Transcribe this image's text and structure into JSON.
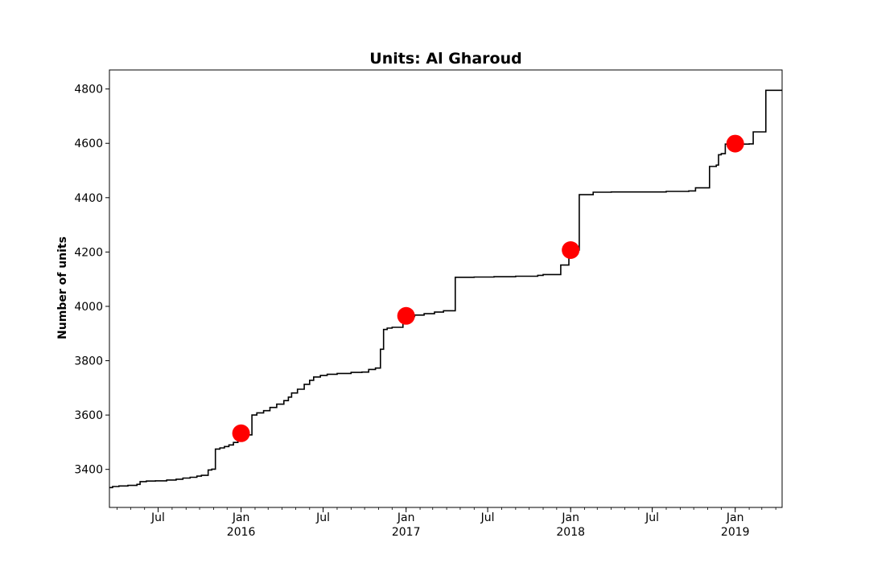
{
  "chart_data": {
    "type": "line",
    "title": "Units: Al Gharoud",
    "xlabel": "",
    "ylabel": "Number of units",
    "ylim": [
      3260,
      4870
    ],
    "y_ticks": [
      3400,
      3600,
      3800,
      4000,
      4200,
      4400,
      4600,
      4800
    ],
    "x_range": [
      "2015-03-15",
      "2019-04-15"
    ],
    "x_ticks": [
      {
        "date": "2015-07-01",
        "label": "Jul",
        "sublabel": ""
      },
      {
        "date": "2016-01-01",
        "label": "Jan",
        "sublabel": "2016"
      },
      {
        "date": "2016-07-01",
        "label": "Jul",
        "sublabel": ""
      },
      {
        "date": "2017-01-01",
        "label": "Jan",
        "sublabel": "2017"
      },
      {
        "date": "2017-07-01",
        "label": "Jul",
        "sublabel": ""
      },
      {
        "date": "2018-01-01",
        "label": "Jan",
        "sublabel": "2018"
      },
      {
        "date": "2018-07-01",
        "label": "Jul",
        "sublabel": ""
      },
      {
        "date": "2019-01-01",
        "label": "Jan",
        "sublabel": "2019"
      }
    ],
    "grid": false,
    "series": [
      {
        "line_color": "#000000",
        "step": true,
        "points": [
          [
            "2015-03-15",
            3333
          ],
          [
            "2015-03-22",
            3337
          ],
          [
            "2015-04-05",
            3339
          ],
          [
            "2015-04-25",
            3341
          ],
          [
            "2015-05-15",
            3345
          ],
          [
            "2015-05-22",
            3355
          ],
          [
            "2015-06-05",
            3357
          ],
          [
            "2015-06-25",
            3358
          ],
          [
            "2015-07-20",
            3361
          ],
          [
            "2015-08-10",
            3364
          ],
          [
            "2015-08-25",
            3368
          ],
          [
            "2015-09-10",
            3371
          ],
          [
            "2015-09-25",
            3375
          ],
          [
            "2015-10-05",
            3378
          ],
          [
            "2015-10-20",
            3398
          ],
          [
            "2015-10-28",
            3401
          ],
          [
            "2015-11-05",
            3475
          ],
          [
            "2015-11-15",
            3479
          ],
          [
            "2015-11-25",
            3484
          ],
          [
            "2015-12-05",
            3490
          ],
          [
            "2015-12-15",
            3499
          ],
          [
            "2015-12-25",
            3506
          ],
          [
            "2016-01-05",
            3517
          ],
          [
            "2016-01-15",
            3527
          ],
          [
            "2016-01-25",
            3600
          ],
          [
            "2016-02-05",
            3608
          ],
          [
            "2016-02-20",
            3616
          ],
          [
            "2016-03-05",
            3628
          ],
          [
            "2016-03-20",
            3640
          ],
          [
            "2016-04-05",
            3653
          ],
          [
            "2016-04-15",
            3666
          ],
          [
            "2016-04-22",
            3681
          ],
          [
            "2016-05-05",
            3695
          ],
          [
            "2016-05-20",
            3713
          ],
          [
            "2016-06-01",
            3728
          ],
          [
            "2016-06-10",
            3740
          ],
          [
            "2016-06-25",
            3746
          ],
          [
            "2016-07-10",
            3750
          ],
          [
            "2016-08-01",
            3753
          ],
          [
            "2016-09-01",
            3757
          ],
          [
            "2016-09-25",
            3758
          ],
          [
            "2016-10-10",
            3768
          ],
          [
            "2016-10-25",
            3773
          ],
          [
            "2016-11-05",
            3842
          ],
          [
            "2016-11-12",
            3915
          ],
          [
            "2016-11-20",
            3920
          ],
          [
            "2016-12-01",
            3923
          ],
          [
            "2016-12-25",
            3963
          ],
          [
            "2017-01-20",
            3968
          ],
          [
            "2017-02-10",
            3973
          ],
          [
            "2017-03-05",
            3979
          ],
          [
            "2017-03-25",
            3984
          ],
          [
            "2017-04-20",
            4107
          ],
          [
            "2017-06-01",
            4108
          ],
          [
            "2017-07-15",
            4109
          ],
          [
            "2017-09-01",
            4111
          ],
          [
            "2017-10-20",
            4114
          ],
          [
            "2017-11-01",
            4117
          ],
          [
            "2017-12-10",
            4152
          ],
          [
            "2017-12-28",
            4207
          ],
          [
            "2018-01-20",
            4411
          ],
          [
            "2018-02-20",
            4420
          ],
          [
            "2018-04-01",
            4421
          ],
          [
            "2018-06-01",
            4421
          ],
          [
            "2018-08-01",
            4423
          ],
          [
            "2018-09-20",
            4425
          ],
          [
            "2018-10-05",
            4436
          ],
          [
            "2018-11-05",
            4515
          ],
          [
            "2018-11-20",
            4520
          ],
          [
            "2018-11-25",
            4558
          ],
          [
            "2018-12-01",
            4562
          ],
          [
            "2018-12-10",
            4597
          ],
          [
            "2019-02-01",
            4598
          ],
          [
            "2019-02-10",
            4642
          ],
          [
            "2019-03-10",
            4795
          ],
          [
            "2019-04-15",
            4795
          ]
        ]
      }
    ],
    "markers": [
      {
        "date": "2016-01-01",
        "value": 3533
      },
      {
        "date": "2017-01-01",
        "value": 3965
      },
      {
        "date": "2018-01-01",
        "value": 4207
      },
      {
        "date": "2019-01-01",
        "value": 4599
      }
    ],
    "marker_color": "#ff0000"
  }
}
